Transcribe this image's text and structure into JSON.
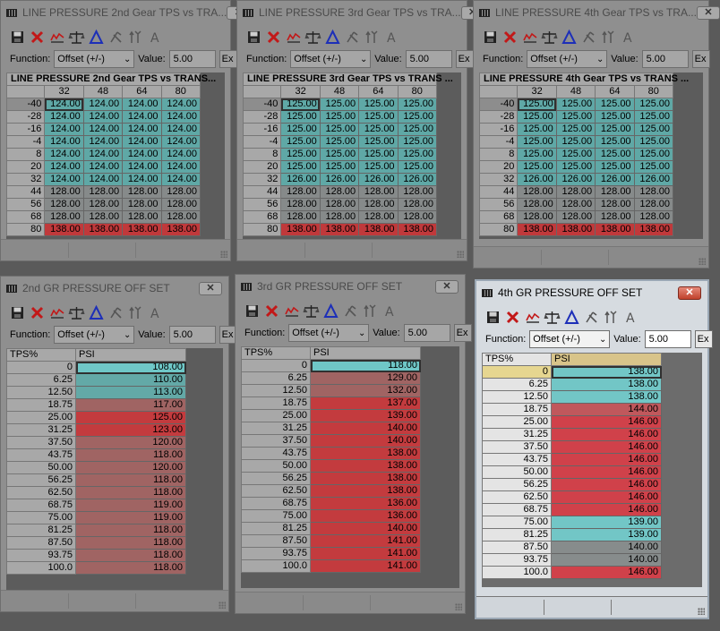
{
  "toolbar": {
    "icons": [
      "save-icon",
      "delete-icon",
      "graph-icon",
      "scale-icon",
      "triangle-icon",
      "x-scale-icon",
      "up-arrow-icon",
      "font-icon"
    ],
    "function_label": "Function:",
    "function_value": "Offset (+/-)",
    "value_label": "Value:",
    "value_value": "5.00",
    "ex_label": "Ex"
  },
  "grid_windows": [
    {
      "title": "LINE PRESSURE  2nd Gear TPS vs TRA...",
      "header": "LINE PRESSURE  2nd Gear TPS vs TRANS...",
      "cols": [
        "32",
        "48",
        "64",
        "80"
      ],
      "rows": [
        {
          "h": "-40",
          "v": [
            "124.00",
            "124.00",
            "124.00",
            "124.00"
          ],
          "c": "teal"
        },
        {
          "h": "-28",
          "v": [
            "124.00",
            "124.00",
            "124.00",
            "124.00"
          ],
          "c": "teal"
        },
        {
          "h": "-16",
          "v": [
            "124.00",
            "124.00",
            "124.00",
            "124.00"
          ],
          "c": "teal"
        },
        {
          "h": "-4",
          "v": [
            "124.00",
            "124.00",
            "124.00",
            "124.00"
          ],
          "c": "teal"
        },
        {
          "h": "8",
          "v": [
            "124.00",
            "124.00",
            "124.00",
            "124.00"
          ],
          "c": "teal"
        },
        {
          "h": "20",
          "v": [
            "124.00",
            "124.00",
            "124.00",
            "124.00"
          ],
          "c": "teal"
        },
        {
          "h": "32",
          "v": [
            "124.00",
            "124.00",
            "124.00",
            "124.00"
          ],
          "c": "teal"
        },
        {
          "h": "44",
          "v": [
            "128.00",
            "128.00",
            "128.00",
            "128.00"
          ],
          "c": "gray"
        },
        {
          "h": "56",
          "v": [
            "128.00",
            "128.00",
            "128.00",
            "128.00"
          ],
          "c": "gray"
        },
        {
          "h": "68",
          "v": [
            "128.00",
            "128.00",
            "128.00",
            "128.00"
          ],
          "c": "gray"
        },
        {
          "h": "80",
          "v": [
            "138.00",
            "138.00",
            "138.00",
            "138.00"
          ],
          "c": "red"
        }
      ]
    },
    {
      "title": "LINE PRESSURE  3rd Gear TPS vs TRA...",
      "header": "LINE PRESSURE  3rd Gear TPS vs TRANS ...",
      "cols": [
        "32",
        "48",
        "64",
        "80"
      ],
      "rows": [
        {
          "h": "-40",
          "v": [
            "125.00",
            "125.00",
            "125.00",
            "125.00"
          ],
          "c": "teal"
        },
        {
          "h": "-28",
          "v": [
            "125.00",
            "125.00",
            "125.00",
            "125.00"
          ],
          "c": "teal"
        },
        {
          "h": "-16",
          "v": [
            "125.00",
            "125.00",
            "125.00",
            "125.00"
          ],
          "c": "teal"
        },
        {
          "h": "-4",
          "v": [
            "125.00",
            "125.00",
            "125.00",
            "125.00"
          ],
          "c": "teal"
        },
        {
          "h": "8",
          "v": [
            "125.00",
            "125.00",
            "125.00",
            "125.00"
          ],
          "c": "teal"
        },
        {
          "h": "20",
          "v": [
            "125.00",
            "125.00",
            "125.00",
            "125.00"
          ],
          "c": "teal"
        },
        {
          "h": "32",
          "v": [
            "126.00",
            "126.00",
            "126.00",
            "126.00"
          ],
          "c": "teal"
        },
        {
          "h": "44",
          "v": [
            "128.00",
            "128.00",
            "128.00",
            "128.00"
          ],
          "c": "gray"
        },
        {
          "h": "56",
          "v": [
            "128.00",
            "128.00",
            "128.00",
            "128.00"
          ],
          "c": "gray"
        },
        {
          "h": "68",
          "v": [
            "128.00",
            "128.00",
            "128.00",
            "128.00"
          ],
          "c": "gray"
        },
        {
          "h": "80",
          "v": [
            "138.00",
            "138.00",
            "138.00",
            "138.00"
          ],
          "c": "red"
        }
      ]
    },
    {
      "title": "LINE PRESSURE  4th Gear TPS vs TRA...",
      "header": "LINE PRESSURE  4th Gear TPS vs TRANS ...",
      "cols": [
        "32",
        "48",
        "64",
        "80"
      ],
      "rows": [
        {
          "h": "-40",
          "v": [
            "125.00",
            "125.00",
            "125.00",
            "125.00"
          ],
          "c": "teal"
        },
        {
          "h": "-28",
          "v": [
            "125.00",
            "125.00",
            "125.00",
            "125.00"
          ],
          "c": "teal"
        },
        {
          "h": "-16",
          "v": [
            "125.00",
            "125.00",
            "125.00",
            "125.00"
          ],
          "c": "teal"
        },
        {
          "h": "-4",
          "v": [
            "125.00",
            "125.00",
            "125.00",
            "125.00"
          ],
          "c": "teal"
        },
        {
          "h": "8",
          "v": [
            "125.00",
            "125.00",
            "125.00",
            "125.00"
          ],
          "c": "teal"
        },
        {
          "h": "20",
          "v": [
            "125.00",
            "125.00",
            "125.00",
            "125.00"
          ],
          "c": "teal"
        },
        {
          "h": "32",
          "v": [
            "126.00",
            "126.00",
            "126.00",
            "126.00"
          ],
          "c": "teal"
        },
        {
          "h": "44",
          "v": [
            "128.00",
            "128.00",
            "128.00",
            "128.00"
          ],
          "c": "gray"
        },
        {
          "h": "56",
          "v": [
            "128.00",
            "128.00",
            "128.00",
            "128.00"
          ],
          "c": "gray"
        },
        {
          "h": "68",
          "v": [
            "128.00",
            "128.00",
            "128.00",
            "128.00"
          ],
          "c": "gray"
        },
        {
          "h": "80",
          "v": [
            "138.00",
            "138.00",
            "138.00",
            "138.00"
          ],
          "c": "red"
        }
      ]
    }
  ],
  "list_windows": [
    {
      "title": "2nd GR PRESSURE OFF SET",
      "col1": "TPS%",
      "col2": "PSI",
      "rows": [
        {
          "h": "0",
          "v": "108.00",
          "c": "teal-hi"
        },
        {
          "h": "6.25",
          "v": "110.00",
          "c": "teal"
        },
        {
          "h": "12.50",
          "v": "113.00",
          "c": "teal"
        },
        {
          "h": "18.75",
          "v": "117.00",
          "c": "mauve"
        },
        {
          "h": "25.00",
          "v": "125.00",
          "c": "red"
        },
        {
          "h": "31.25",
          "v": "123.00",
          "c": "red"
        },
        {
          "h": "37.50",
          "v": "120.00",
          "c": "mauve"
        },
        {
          "h": "43.75",
          "v": "118.00",
          "c": "mauve"
        },
        {
          "h": "50.00",
          "v": "120.00",
          "c": "mauve"
        },
        {
          "h": "56.25",
          "v": "118.00",
          "c": "mauve"
        },
        {
          "h": "62.50",
          "v": "118.00",
          "c": "mauve"
        },
        {
          "h": "68.75",
          "v": "119.00",
          "c": "mauve"
        },
        {
          "h": "75.00",
          "v": "119.00",
          "c": "mauve"
        },
        {
          "h": "81.25",
          "v": "118.00",
          "c": "mauve"
        },
        {
          "h": "87.50",
          "v": "118.00",
          "c": "mauve"
        },
        {
          "h": "93.75",
          "v": "118.00",
          "c": "mauve"
        },
        {
          "h": "100.0",
          "v": "118.00",
          "c": "mauve"
        }
      ]
    },
    {
      "title": "3rd GR PRESSURE OFF SET",
      "col1": "TPS%",
      "col2": "PSI",
      "rows": [
        {
          "h": "0",
          "v": "118.00",
          "c": "teal-hi"
        },
        {
          "h": "6.25",
          "v": "129.00",
          "c": "mauve"
        },
        {
          "h": "12.50",
          "v": "132.00",
          "c": "mauve"
        },
        {
          "h": "18.75",
          "v": "137.00",
          "c": "red"
        },
        {
          "h": "25.00",
          "v": "139.00",
          "c": "red"
        },
        {
          "h": "31.25",
          "v": "140.00",
          "c": "red"
        },
        {
          "h": "37.50",
          "v": "140.00",
          "c": "red"
        },
        {
          "h": "43.75",
          "v": "138.00",
          "c": "red"
        },
        {
          "h": "50.00",
          "v": "138.00",
          "c": "red"
        },
        {
          "h": "56.25",
          "v": "138.00",
          "c": "red"
        },
        {
          "h": "62.50",
          "v": "138.00",
          "c": "red"
        },
        {
          "h": "68.75",
          "v": "136.00",
          "c": "red"
        },
        {
          "h": "75.00",
          "v": "136.00",
          "c": "red"
        },
        {
          "h": "81.25",
          "v": "140.00",
          "c": "red"
        },
        {
          "h": "87.50",
          "v": "141.00",
          "c": "red"
        },
        {
          "h": "93.75",
          "v": "141.00",
          "c": "red"
        },
        {
          "h": "100.0",
          "v": "141.00",
          "c": "red"
        }
      ]
    },
    {
      "title": "4th GR PRESSURE OFF SET",
      "col1": "TPS%",
      "col2": "PSI",
      "rows": [
        {
          "h": "0",
          "v": "138.00",
          "c": "teal"
        },
        {
          "h": "6.25",
          "v": "138.00",
          "c": "teal"
        },
        {
          "h": "12.50",
          "v": "138.00",
          "c": "teal"
        },
        {
          "h": "18.75",
          "v": "144.00",
          "c": "mauve"
        },
        {
          "h": "25.00",
          "v": "146.00",
          "c": "red"
        },
        {
          "h": "31.25",
          "v": "146.00",
          "c": "red"
        },
        {
          "h": "37.50",
          "v": "146.00",
          "c": "red"
        },
        {
          "h": "43.75",
          "v": "146.00",
          "c": "red"
        },
        {
          "h": "50.00",
          "v": "146.00",
          "c": "red"
        },
        {
          "h": "56.25",
          "v": "146.00",
          "c": "red"
        },
        {
          "h": "62.50",
          "v": "146.00",
          "c": "red"
        },
        {
          "h": "68.75",
          "v": "146.00",
          "c": "red"
        },
        {
          "h": "75.00",
          "v": "139.00",
          "c": "teal"
        },
        {
          "h": "81.25",
          "v": "139.00",
          "c": "teal"
        },
        {
          "h": "87.50",
          "v": "140.00",
          "c": "gray"
        },
        {
          "h": "93.75",
          "v": "140.00",
          "c": "gray"
        },
        {
          "h": "100.0",
          "v": "146.00",
          "c": "red"
        }
      ]
    }
  ],
  "colors": {
    "teal": "#5fa8a6",
    "gray": "#868a8a",
    "red": "#c0393b",
    "mauve": "#a06463",
    "active_title": "#000000"
  }
}
